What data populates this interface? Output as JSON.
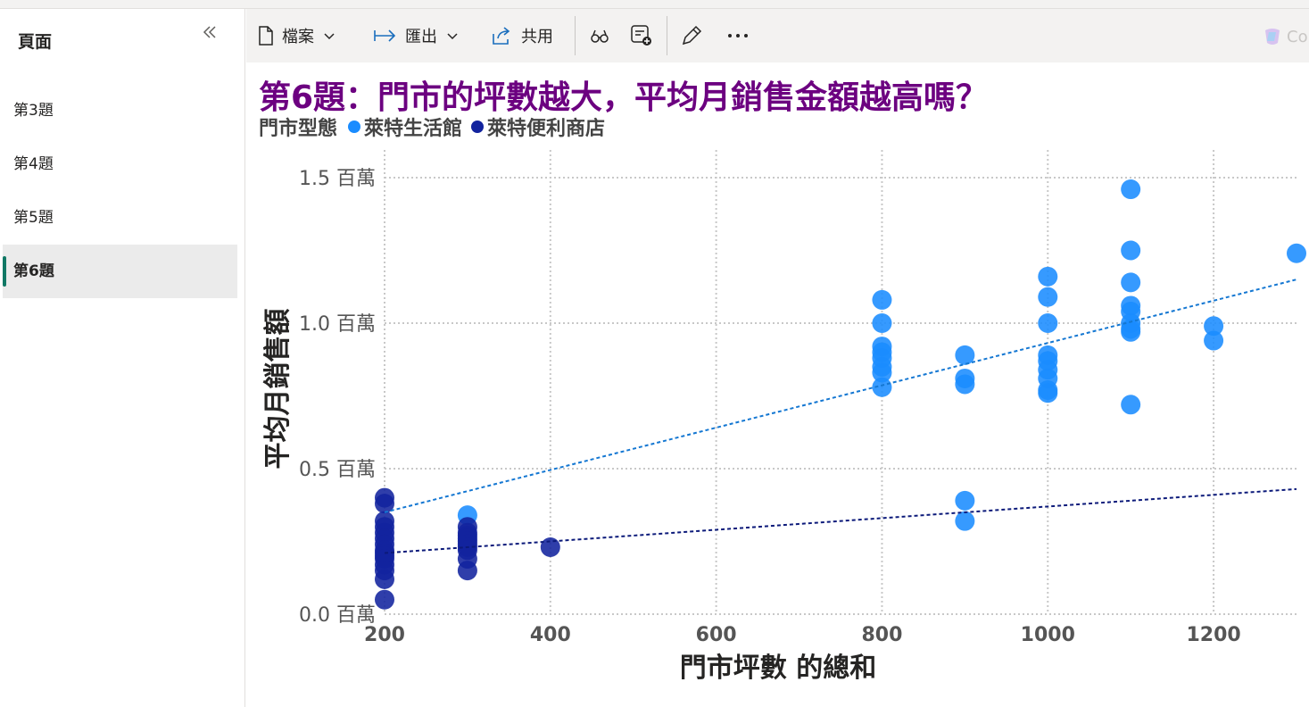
{
  "pages": {
    "header": "頁面",
    "collapse_icon": "double-chevron-left-icon",
    "items": [
      {
        "label": "第3題",
        "active": false
      },
      {
        "label": "第4題",
        "active": false
      },
      {
        "label": "第5題",
        "active": false
      },
      {
        "label": "第6題",
        "active": true
      }
    ]
  },
  "toolbar": {
    "file_label": "檔案",
    "export_label": "匯出",
    "share_label": "共用",
    "copilot_label": "Co",
    "icons": [
      "file-icon",
      "export-arrow-icon",
      "share-icon",
      "binoculars-icon",
      "comment-add-icon",
      "pencil-icon",
      "more-icon",
      "copilot-icon"
    ]
  },
  "colors": {
    "accent": "#117865",
    "title": "#6c0080",
    "series_life": "#1a8cff",
    "series_conv": "#12239e"
  },
  "chart_data": {
    "type": "scatter",
    "title": "第6題：門市的坪數越大，平均月銷售金額越高嗎？",
    "legend_title": "門市型態",
    "xlabel": "門市坪數 的總和",
    "ylabel": "平均月銷售額",
    "xlim": [
      200,
      1300
    ],
    "ylim": [
      0,
      1.6
    ],
    "x_ticks": [
      200,
      400,
      600,
      800,
      1000,
      1200
    ],
    "y_ticks": [
      0.0,
      0.5,
      1.0,
      1.5
    ],
    "y_tick_labels": [
      "0.0 百萬",
      "0.5 百萬",
      "1.0 百萬",
      "1.5 百萬"
    ],
    "grid": true,
    "legend_position": "top-left",
    "series": [
      {
        "name": "萊特生活館",
        "color": "#1a8cff",
        "points": [
          [
            300,
            0.34
          ],
          [
            800,
            1.08
          ],
          [
            800,
            1.0
          ],
          [
            800,
            0.92
          ],
          [
            800,
            0.9
          ],
          [
            800,
            0.88
          ],
          [
            800,
            0.85
          ],
          [
            800,
            0.83
          ],
          [
            800,
            0.78
          ],
          [
            900,
            0.89
          ],
          [
            900,
            0.81
          ],
          [
            900,
            0.79
          ],
          [
            900,
            0.39
          ],
          [
            900,
            0.32
          ],
          [
            1000,
            1.16
          ],
          [
            1000,
            1.09
          ],
          [
            1000,
            1.0
          ],
          [
            1000,
            0.89
          ],
          [
            1000,
            0.87
          ],
          [
            1000,
            0.84
          ],
          [
            1000,
            0.81
          ],
          [
            1000,
            0.77
          ],
          [
            1000,
            0.76
          ],
          [
            1100,
            1.46
          ],
          [
            1100,
            1.25
          ],
          [
            1100,
            1.14
          ],
          [
            1100,
            1.06
          ],
          [
            1100,
            1.04
          ],
          [
            1100,
            1.0
          ],
          [
            1100,
            0.98
          ],
          [
            1100,
            0.97
          ],
          [
            1100,
            0.72
          ],
          [
            1200,
            0.99
          ],
          [
            1200,
            0.94
          ],
          [
            1300,
            1.24
          ]
        ],
        "trend": [
          [
            200,
            0.35
          ],
          [
            1300,
            1.15
          ]
        ]
      },
      {
        "name": "萊特便利商店",
        "color": "#12239e",
        "points": [
          [
            200,
            0.4
          ],
          [
            200,
            0.38
          ],
          [
            200,
            0.32
          ],
          [
            200,
            0.3
          ],
          [
            200,
            0.28
          ],
          [
            200,
            0.26
          ],
          [
            200,
            0.24
          ],
          [
            200,
            0.22
          ],
          [
            200,
            0.21
          ],
          [
            200,
            0.2
          ],
          [
            200,
            0.19
          ],
          [
            200,
            0.17
          ],
          [
            200,
            0.15
          ],
          [
            200,
            0.12
          ],
          [
            200,
            0.05
          ],
          [
            300,
            0.3
          ],
          [
            300,
            0.28
          ],
          [
            300,
            0.27
          ],
          [
            300,
            0.26
          ],
          [
            300,
            0.25
          ],
          [
            300,
            0.24
          ],
          [
            300,
            0.23
          ],
          [
            300,
            0.22
          ],
          [
            300,
            0.19
          ],
          [
            300,
            0.15
          ],
          [
            400,
            0.23
          ]
        ],
        "trend": [
          [
            200,
            0.21
          ],
          [
            1300,
            0.43
          ]
        ]
      }
    ]
  }
}
